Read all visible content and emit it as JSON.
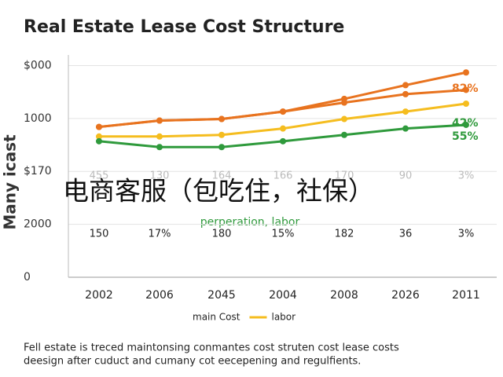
{
  "chart_data": {
    "type": "line",
    "title": "Real Estate Lease Cost Structure",
    "ylabel": "Many icast",
    "categories": [
      "2002",
      "2006",
      "2045",
      "2004",
      "2008",
      "2026",
      "2011"
    ],
    "ylim": [
      0,
      4.2
    ],
    "yticks": [
      {
        "value": 0,
        "label": "0"
      },
      {
        "value": 1,
        "label": "2000"
      },
      {
        "value": 2,
        "label": "$170"
      },
      {
        "value": 3,
        "label": "1000"
      },
      {
        "value": 4,
        "label": "$000"
      }
    ],
    "grid": true,
    "series": [
      {
        "name": "main Cost",
        "color": "#e8731f",
        "values": [
          2.84,
          2.96,
          2.99,
          3.13,
          3.37,
          3.63,
          3.87
        ]
      },
      {
        "color": "#e8731f",
        "values": [
          2.84,
          2.96,
          2.99,
          3.13,
          3.3,
          3.46,
          3.54
        ]
      },
      {
        "name": "labor",
        "color": "#f5bd1f",
        "values": [
          2.66,
          2.66,
          2.69,
          2.81,
          2.99,
          3.13,
          3.28
        ]
      },
      {
        "color": "#2f9a3c",
        "values": [
          2.57,
          2.46,
          2.46,
          2.57,
          2.69,
          2.81,
          2.88
        ]
      }
    ],
    "end_labels": [
      {
        "text": "82%",
        "color": "#e8731f"
      },
      {
        "text": "42%",
        "color": "#2f9a3c"
      },
      {
        "text": "55%",
        "color": "#2f9a3c"
      }
    ],
    "annotation": "perperation, labor",
    "table_rows": [
      [
        "455",
        "130",
        "164",
        "166",
        "170",
        "90",
        "3%"
      ],
      [
        "150",
        "17%",
        "180",
        "15%",
        "182",
        "36",
        "3%"
      ]
    ],
    "overlay": "电商客服（包吃住，社保）",
    "caption": [
      "Fell estate is treced maintonsing conmantes cost struten cost lease costs",
      "deesign after cuduct and cumany cot eecepening and regulfients."
    ]
  }
}
